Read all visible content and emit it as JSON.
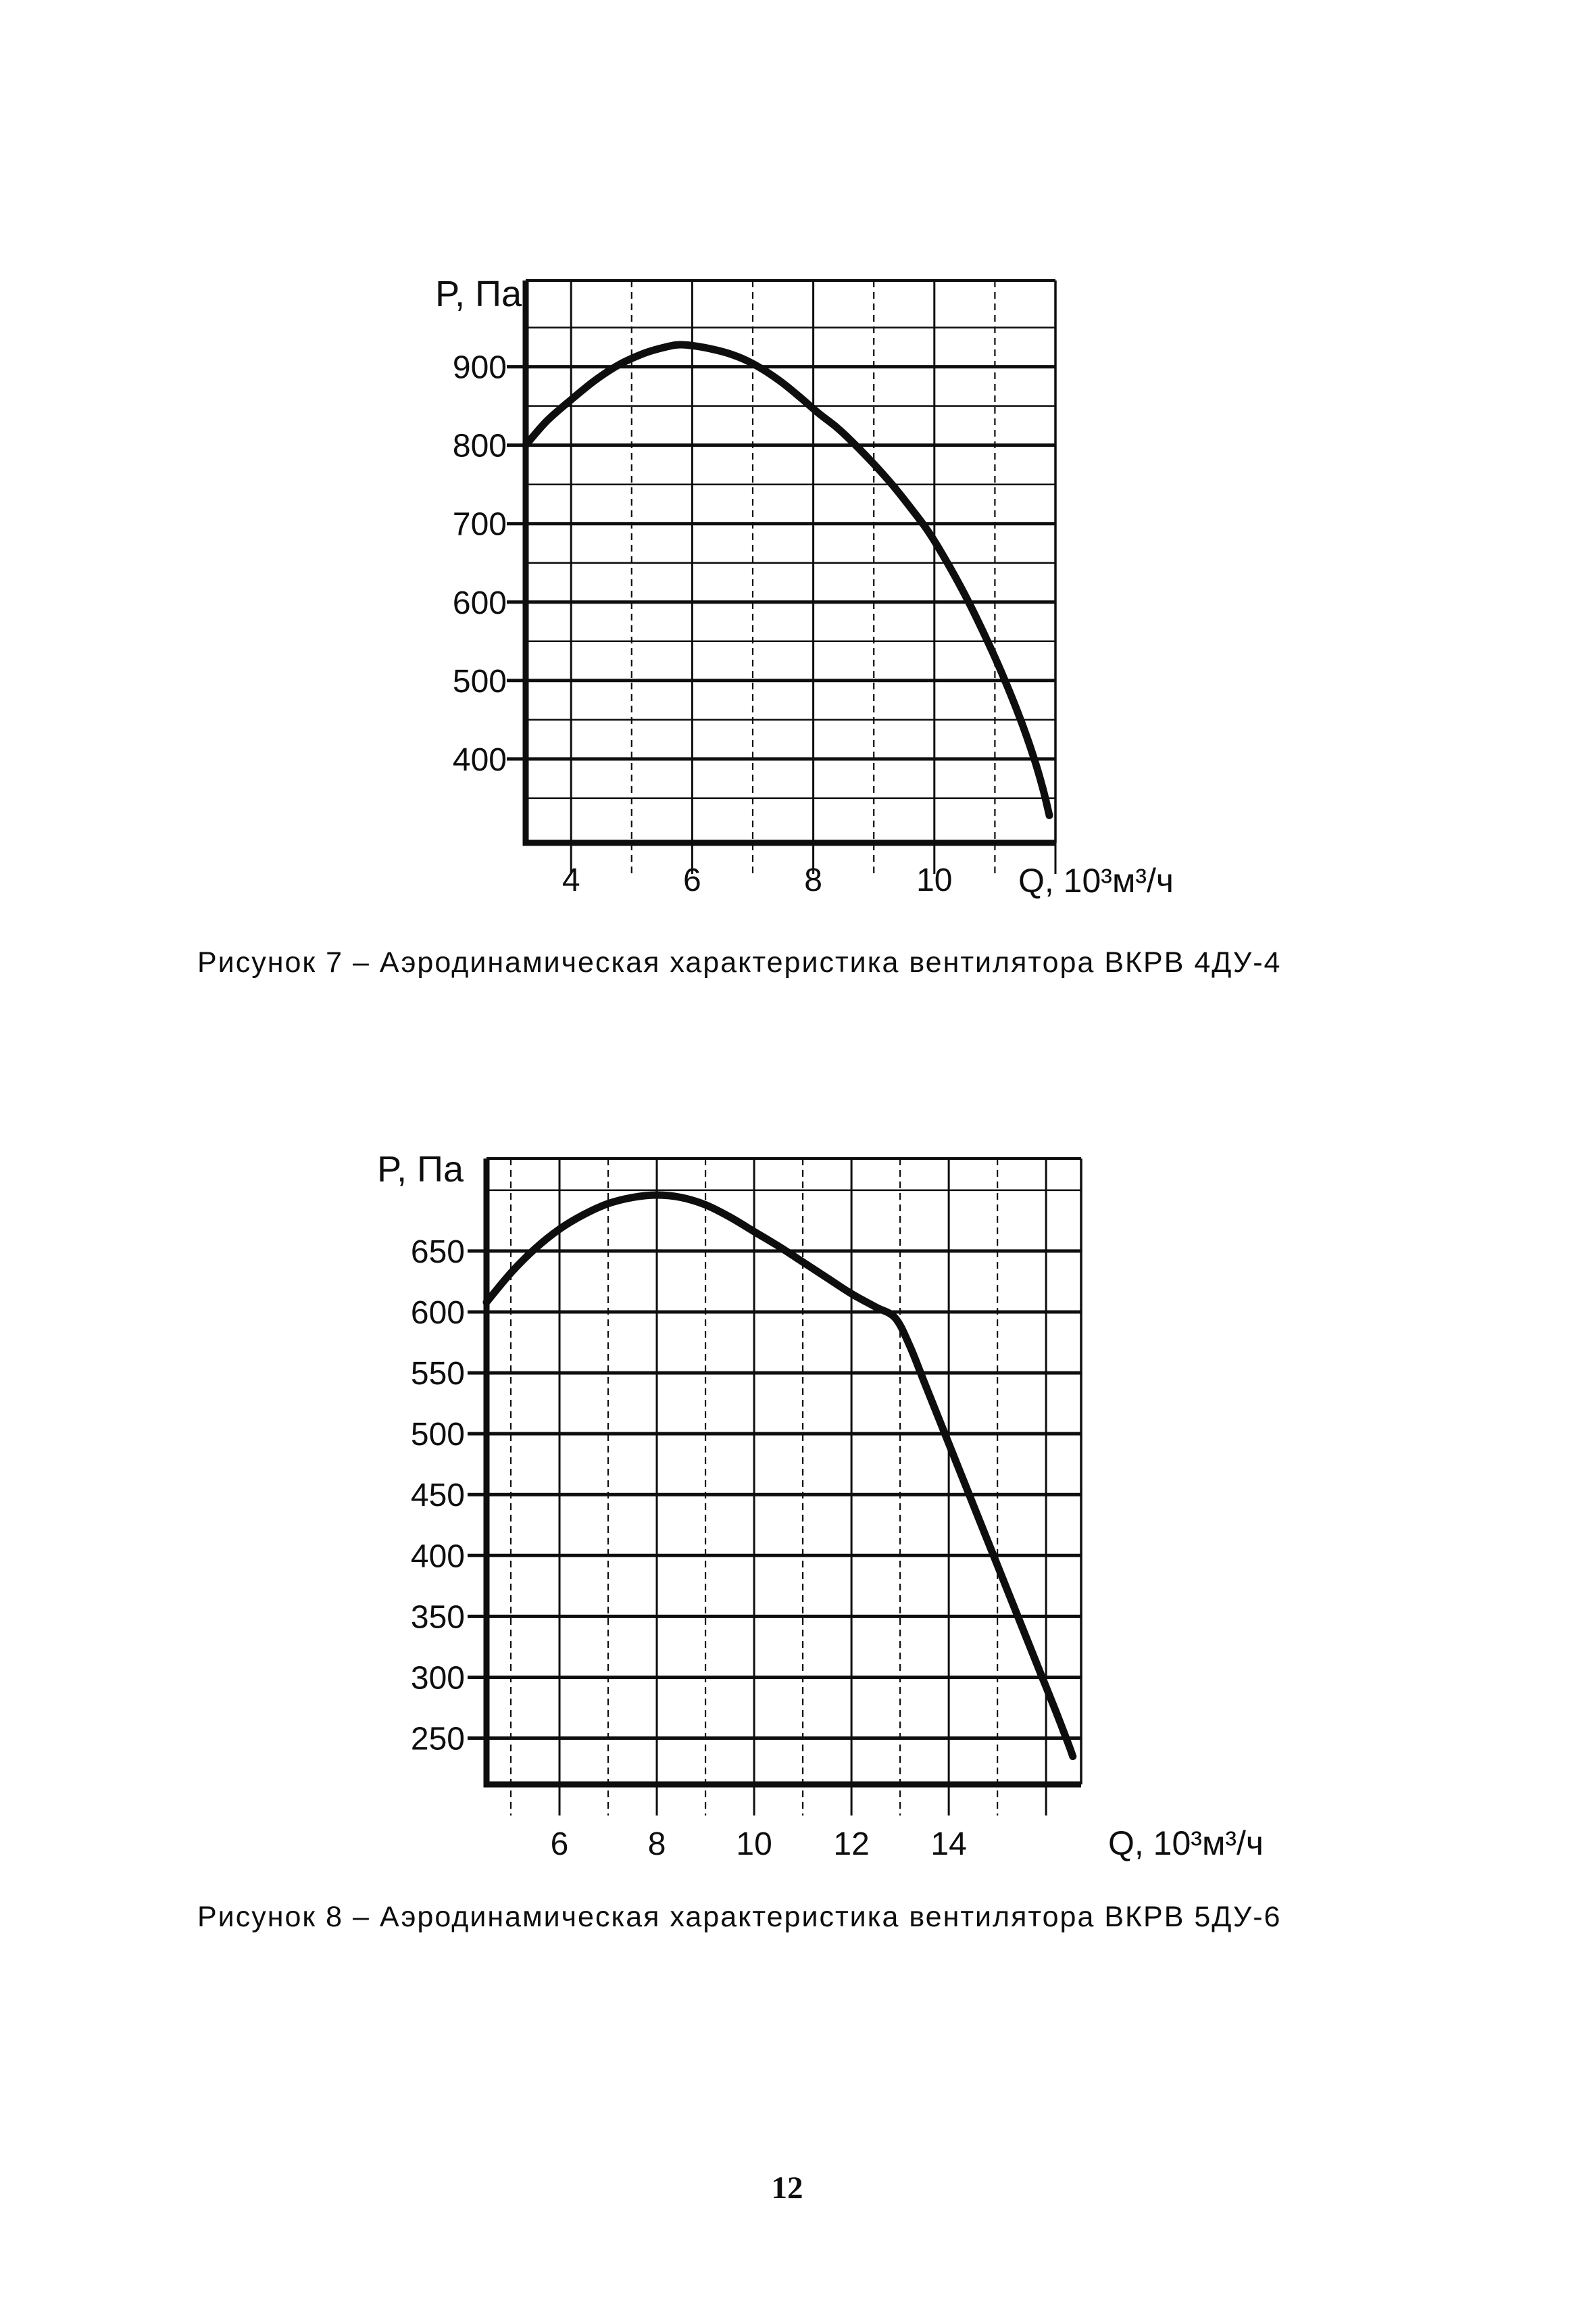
{
  "page": {
    "number": "12",
    "background": "#ffffff",
    "ink": "#0e0e0e"
  },
  "figures": [
    {
      "id": "fig7",
      "caption": "Рисунок 7 – Аэродинамическая характеристика вентилятора ВКРВ 4ДУ-4",
      "chart_data": {
        "type": "line",
        "title": "Аэродинамическая характеристика вентилятора ВКРВ 4ДУ-4",
        "xlabel": "Q, 10³м³/ч",
        "ylabel": "P, Па",
        "xlim": [
          3.25,
          12.0
        ],
        "ylim": [
          293,
          1010
        ],
        "grid": true,
        "legend": "none",
        "x_tick_labels": [
          {
            "value": 4,
            "label": "4"
          },
          {
            "value": 6,
            "label": "6"
          },
          {
            "value": 8,
            "label": "8"
          },
          {
            "value": 10,
            "label": "10"
          }
        ],
        "y_tick_labels": [
          {
            "value": 900,
            "label": "900"
          },
          {
            "value": 800,
            "label": "800"
          },
          {
            "value": 700,
            "label": "700"
          },
          {
            "value": 600,
            "label": "600"
          },
          {
            "value": 500,
            "label": "500"
          },
          {
            "value": 400,
            "label": "400"
          }
        ],
        "x_gridlines_solid": [
          4,
          6,
          8,
          10,
          12
        ],
        "x_gridlines_dashed": [
          5,
          7,
          9,
          11
        ],
        "y_gridlines": [
          350,
          400,
          450,
          500,
          550,
          600,
          650,
          700,
          750,
          800,
          850,
          900,
          950
        ],
        "y_gridlines_bold": [
          400,
          500,
          600,
          700,
          800,
          900
        ],
        "series": [
          {
            "name": "P(Q) ВКРВ 4ДУ-4",
            "points": [
              [
                3.25,
                800
              ],
              [
                3.6,
                831
              ],
              [
                4.0,
                858
              ],
              [
                4.4,
                883
              ],
              [
                4.8,
                903
              ],
              [
                5.2,
                917
              ],
              [
                5.5,
                924
              ],
              [
                5.75,
                928
              ],
              [
                6.0,
                927
              ],
              [
                6.3,
                923
              ],
              [
                6.6,
                917
              ],
              [
                6.9,
                908
              ],
              [
                7.2,
                895
              ],
              [
                7.5,
                879
              ],
              [
                7.8,
                860
              ],
              [
                8.1,
                840
              ],
              [
                8.4,
                822
              ],
              [
                8.7,
                800
              ],
              [
                9.0,
                776
              ],
              [
                9.3,
                750
              ],
              [
                9.6,
                721
              ],
              [
                9.9,
                690
              ],
              [
                10.2,
                652
              ],
              [
                10.5,
                610
              ],
              [
                10.8,
                563
              ],
              [
                11.1,
                512
              ],
              [
                11.4,
                455
              ],
              [
                11.65,
                400
              ],
              [
                11.8,
                360
              ],
              [
                11.9,
                328
              ]
            ]
          }
        ]
      }
    },
    {
      "id": "fig8",
      "caption": "Рисунок 8 – Аэродинамическая характеристика вентилятора ВКРВ 5ДУ-6",
      "chart_data": {
        "type": "line",
        "title": "Аэродинамическая характеристика вентилятора ВКРВ 5ДУ-6",
        "xlabel": "Q, 10³м³/ч",
        "ylabel": "P, Па",
        "xlim": [
          4.5,
          16.72
        ],
        "ylim": [
          212,
          726
        ],
        "grid": true,
        "legend": "none",
        "x_tick_labels": [
          {
            "value": 6,
            "label": "6"
          },
          {
            "value": 8,
            "label": "8"
          },
          {
            "value": 10,
            "label": "10"
          },
          {
            "value": 12,
            "label": "12"
          },
          {
            "value": 14,
            "label": "14"
          }
        ],
        "y_tick_labels": [
          {
            "value": 650,
            "label": "650"
          },
          {
            "value": 600,
            "label": "600"
          },
          {
            "value": 550,
            "label": "550"
          },
          {
            "value": 500,
            "label": "500"
          },
          {
            "value": 450,
            "label": "450"
          },
          {
            "value": 400,
            "label": "400"
          },
          {
            "value": 350,
            "label": "350"
          },
          {
            "value": 300,
            "label": "300"
          },
          {
            "value": 250,
            "label": "250"
          }
        ],
        "x_gridlines_solid": [
          6,
          8,
          10,
          12,
          14,
          16
        ],
        "x_gridlines_dashed": [
          5,
          7,
          9,
          11,
          13,
          15
        ],
        "y_gridlines": [
          250,
          300,
          350,
          400,
          450,
          500,
          550,
          600,
          650,
          700
        ],
        "y_gridlines_bold": [
          250,
          300,
          350,
          400,
          450,
          500,
          550,
          600,
          650
        ],
        "series": [
          {
            "name": "P(Q) ВКРВ 5ДУ-6",
            "points": [
              [
                4.5,
                608
              ],
              [
                5.0,
                632
              ],
              [
                5.5,
                652
              ],
              [
                6.0,
                668
              ],
              [
                6.5,
                680
              ],
              [
                7.0,
                689
              ],
              [
                7.5,
                694
              ],
              [
                8.0,
                696
              ],
              [
                8.5,
                694
              ],
              [
                9.0,
                688
              ],
              [
                9.5,
                678
              ],
              [
                10.0,
                666
              ],
              [
                10.5,
                654
              ],
              [
                11.0,
                641
              ],
              [
                11.5,
                628
              ],
              [
                12.0,
                615
              ],
              [
                12.5,
                604
              ],
              [
                12.9,
                595
              ],
              [
                13.2,
                572
              ],
              [
                13.5,
                542
              ],
              [
                13.8,
                512
              ],
              [
                14.1,
                482
              ],
              [
                14.4,
                452
              ],
              [
                14.7,
                422
              ],
              [
                15.0,
                392
              ],
              [
                15.3,
                362
              ],
              [
                15.6,
                332
              ],
              [
                15.9,
                302
              ],
              [
                16.2,
                272
              ],
              [
                16.45,
                246
              ],
              [
                16.55,
                235
              ]
            ]
          }
        ]
      }
    }
  ]
}
